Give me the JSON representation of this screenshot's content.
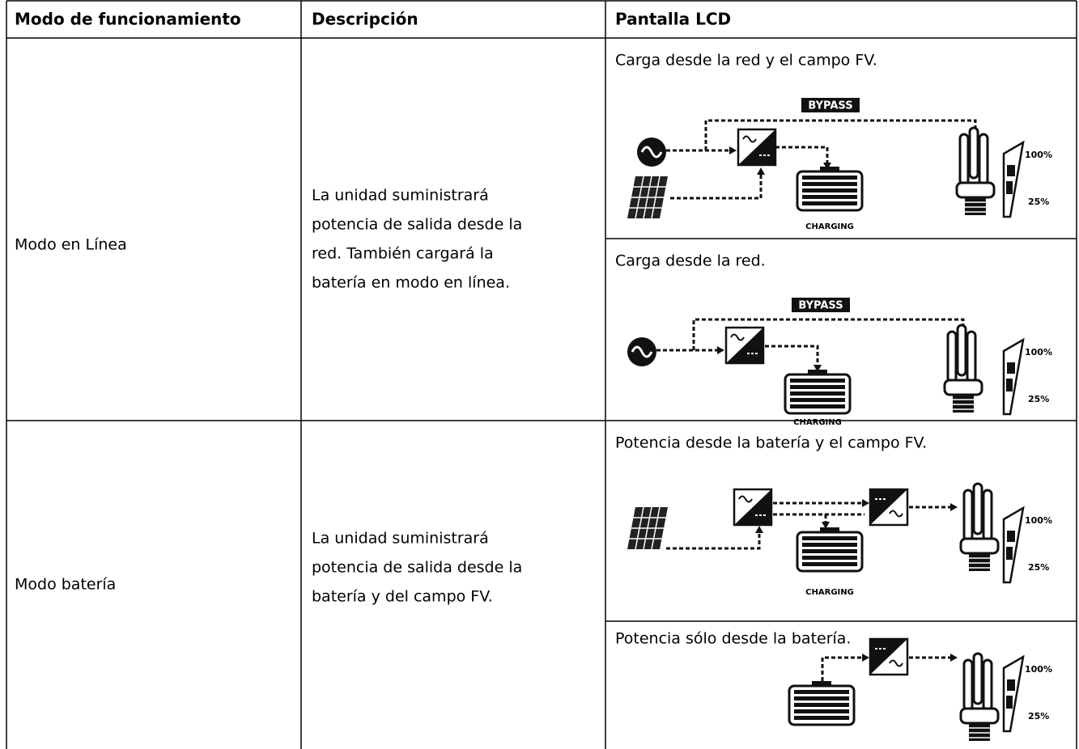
{
  "table": {
    "headers": [
      "Modo de funcionamiento",
      "Descripción",
      "Pantalla LCD"
    ],
    "rows": [
      {
        "mode": "Modo en Línea",
        "description": [
          "La unidad suministrará",
          "potencia de salida desde la",
          "red. También cargará la",
          "batería en modo en línea."
        ],
        "lcd": [
          {
            "caption": "Carga desde la red y el campo FV.",
            "labels": {
              "bypass": "BYPASS",
              "charging": "CHARGING",
              "full": "100%",
              "low": "25%"
            }
          },
          {
            "caption": "Carga desde la red.",
            "labels": {
              "bypass": "BYPASS",
              "charging": "CHARGING",
              "full": "100%",
              "low": "25%"
            }
          }
        ]
      },
      {
        "mode": "Modo batería",
        "description": [
          "La unidad suministrará",
          "potencia de salida desde la",
          "batería y del campo FV."
        ],
        "lcd": [
          {
            "caption": "Potencia desde la batería y el campo FV.",
            "labels": {
              "charging": "CHARGING",
              "full": "100%",
              "low": "25%"
            }
          },
          {
            "caption": "Potencia sólo desde la batería.",
            "labels": {
              "full": "100%",
              "low": "25%"
            }
          }
        ]
      }
    ]
  }
}
